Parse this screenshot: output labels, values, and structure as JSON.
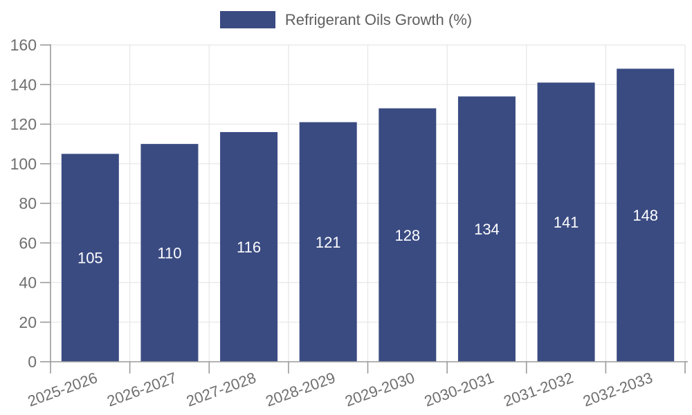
{
  "legend": {
    "label": "Refrigerant Oils Growth (%)"
  },
  "chart_data": {
    "type": "bar",
    "title": "Refrigerant Oils Growth (%)",
    "categories": [
      "2025-2026",
      "2026-2027",
      "2027-2028",
      "2028-2029",
      "2029-2030",
      "2030-2031",
      "2031-2032",
      "2032-2033"
    ],
    "values": [
      105,
      110,
      116,
      121,
      128,
      134,
      141,
      148
    ],
    "xlabel": "",
    "ylabel": "",
    "ylim": [
      0,
      160
    ],
    "ytick_step": 20,
    "yticks": [
      0,
      20,
      40,
      60,
      80,
      100,
      120,
      140,
      160
    ],
    "grid": true,
    "legend_position": "top",
    "value_labels_inside_bars": true
  },
  "colors": {
    "bar": "#3A4B82",
    "axis": "#9a9a9a",
    "grid": "#e7e7e7",
    "tick_label": "#6f6f6f",
    "value_label": "#ffffff",
    "legend_text": "#5f5f5f",
    "background": "#ffffff"
  }
}
